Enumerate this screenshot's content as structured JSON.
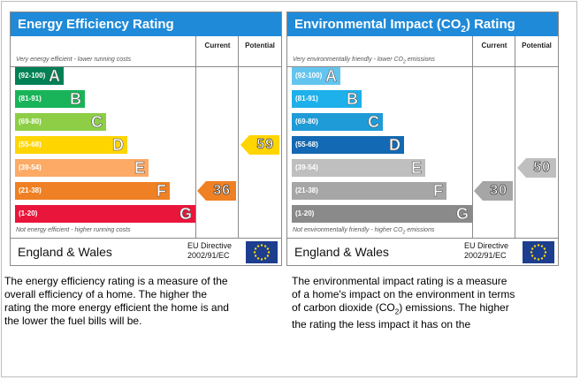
{
  "energy": {
    "title": "Energy Efficiency Rating",
    "col_current": "Current",
    "col_potential": "Potential",
    "top_caption": "Very energy efficient - lower running costs",
    "bottom_caption": "Not energy efficient - higher running costs",
    "bands": [
      {
        "range": "(92-100)",
        "letter": "A",
        "color": "#008054",
        "width_frac": 0.23
      },
      {
        "range": "(81-91)",
        "letter": "B",
        "color": "#19b459",
        "width_frac": 0.33
      },
      {
        "range": "(69-80)",
        "letter": "C",
        "color": "#8dce46",
        "width_frac": 0.43
      },
      {
        "range": "(55-68)",
        "letter": "D",
        "color": "#ffd500",
        "width_frac": 0.53
      },
      {
        "range": "(39-54)",
        "letter": "E",
        "color": "#fcaa65",
        "width_frac": 0.63
      },
      {
        "range": "(21-38)",
        "letter": "F",
        "color": "#ef8023",
        "width_frac": 0.73
      },
      {
        "range": "(1-20)",
        "letter": "G",
        "color": "#e9153b",
        "width_frac": 0.85
      }
    ],
    "current": {
      "value": "36",
      "band_index": 5,
      "color": "#ef8023"
    },
    "potential": {
      "value": "59",
      "band_index": 3,
      "color": "#ffd500"
    },
    "region": "England & Wales",
    "directive_line1": "EU Directive",
    "directive_line2": "2002/91/EC",
    "header_color": "#1f8ad8"
  },
  "environment": {
    "title_pre": "Environmental Impact (CO",
    "title_sub": "2",
    "title_post": ") Rating",
    "col_current": "Current",
    "col_potential": "Potential",
    "top_caption_pre": "Very environmentally friendly - lower CO",
    "top_caption_sub": "2",
    "top_caption_post": " emissions",
    "bottom_caption_pre": "Not environmentally friendly - higher CO",
    "bottom_caption_sub": "2",
    "bottom_caption_post": " emissions",
    "bands": [
      {
        "range": "(92-100)",
        "letter": "A",
        "color": "#63c5ef",
        "width_frac": 0.23
      },
      {
        "range": "(81-91)",
        "letter": "B",
        "color": "#1eb0ea",
        "width_frac": 0.33
      },
      {
        "range": "(69-80)",
        "letter": "C",
        "color": "#1f9bd7",
        "width_frac": 0.43
      },
      {
        "range": "(55-68)",
        "letter": "D",
        "color": "#1369b3",
        "width_frac": 0.53
      },
      {
        "range": "(39-54)",
        "letter": "E",
        "color": "#bfbfbf",
        "width_frac": 0.63
      },
      {
        "range": "(21-38)",
        "letter": "F",
        "color": "#a6a6a6",
        "width_frac": 0.73
      },
      {
        "range": "(1-20)",
        "letter": "G",
        "color": "#8a8a8a",
        "width_frac": 0.85
      }
    ],
    "current": {
      "value": "30",
      "band_index": 5,
      "color": "#a6a6a6"
    },
    "potential": {
      "value": "50",
      "band_index": 4,
      "color": "#bfbfbf"
    },
    "region": "England & Wales",
    "directive_line1": "EU Directive",
    "directive_line2": "2002/91/EC",
    "header_color": "#1f8ad8"
  },
  "descriptions": {
    "energy_lines": [
      "The energy efficiency rating is a measure of the",
      "overall efficiency of a home. The higher the",
      "rating the more energy efficient the home is and",
      "the lower the fuel bills will be."
    ],
    "env_lines": [
      "The environmental impact rating is a measure",
      "of a home's impact on the environment in terms",
      "of carbon dioxide (CO",
      "2",
      ") emissions. The higher",
      "the rating the less impact it has on the"
    ]
  }
}
